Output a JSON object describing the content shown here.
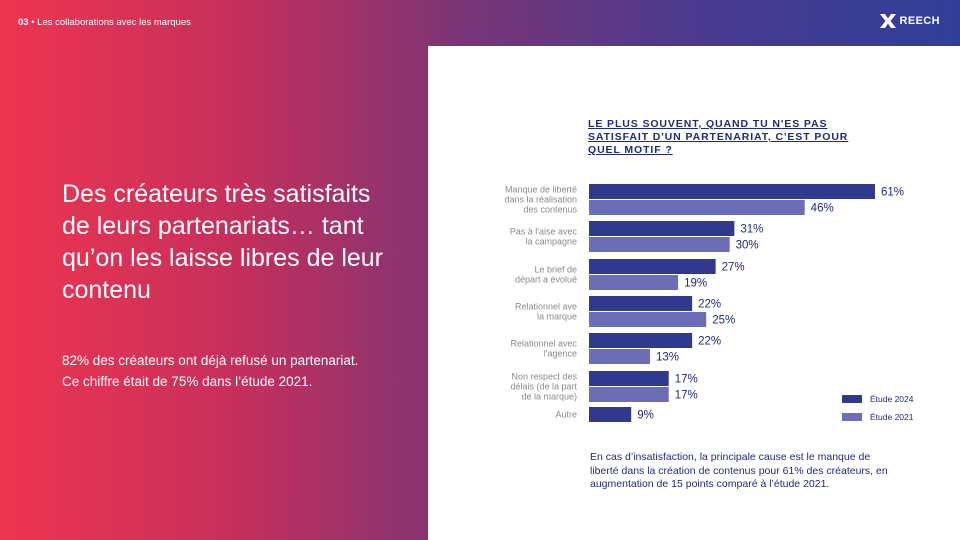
{
  "header": {
    "section_number": "03",
    "section_title": "• Les collaborations avec les marques",
    "logo_text": "REECH"
  },
  "headline": "Des créateurs très satisfaits de leurs partenariats… tant qu’on les laisse libres de leur contenu",
  "subtext": "82% des créateurs ont déjà refusé un partenariat. Ce chiffre était de 75% dans l’étude 2021.",
  "chart_data": {
    "type": "bar",
    "orientation": "horizontal",
    "title": "LE PLUS SOUVENT, QUAND TU N'ES PAS SATISFAIT D'UN PARTENARIAT, C'EST POUR QUEL MOTIF ?",
    "categories": [
      [
        "Manque de liberté",
        "dans la réalisation",
        "des contenus"
      ],
      [
        "Pas à l'aise avec",
        "la campagne"
      ],
      [
        "Le brief de",
        "départ a évolué"
      ],
      [
        "Relationnel ave",
        "la marque"
      ],
      [
        "Relationnel avec",
        "l'agence"
      ],
      [
        "Non respect des",
        "délais (de la part",
        "de la marque)"
      ],
      [
        "Autre"
      ]
    ],
    "series": [
      {
        "name": "Étude 2024",
        "color": "#2f3a8f",
        "values": [
          61,
          31,
          27,
          22,
          22,
          17,
          9
        ]
      },
      {
        "name": "Étude 2021",
        "color": "#6b6db6",
        "values": [
          46,
          30,
          19,
          25,
          13,
          17,
          null
        ]
      }
    ],
    "value_suffix": "%",
    "xlim": [
      0,
      61
    ],
    "legend_position": "bottom-right"
  },
  "note": "En cas d’insatisfaction, la principale cause est le manque de liberté dans la création de contenus pour 61% des créateurs, en augmentation de 15 points comparé à l’étude 2021."
}
